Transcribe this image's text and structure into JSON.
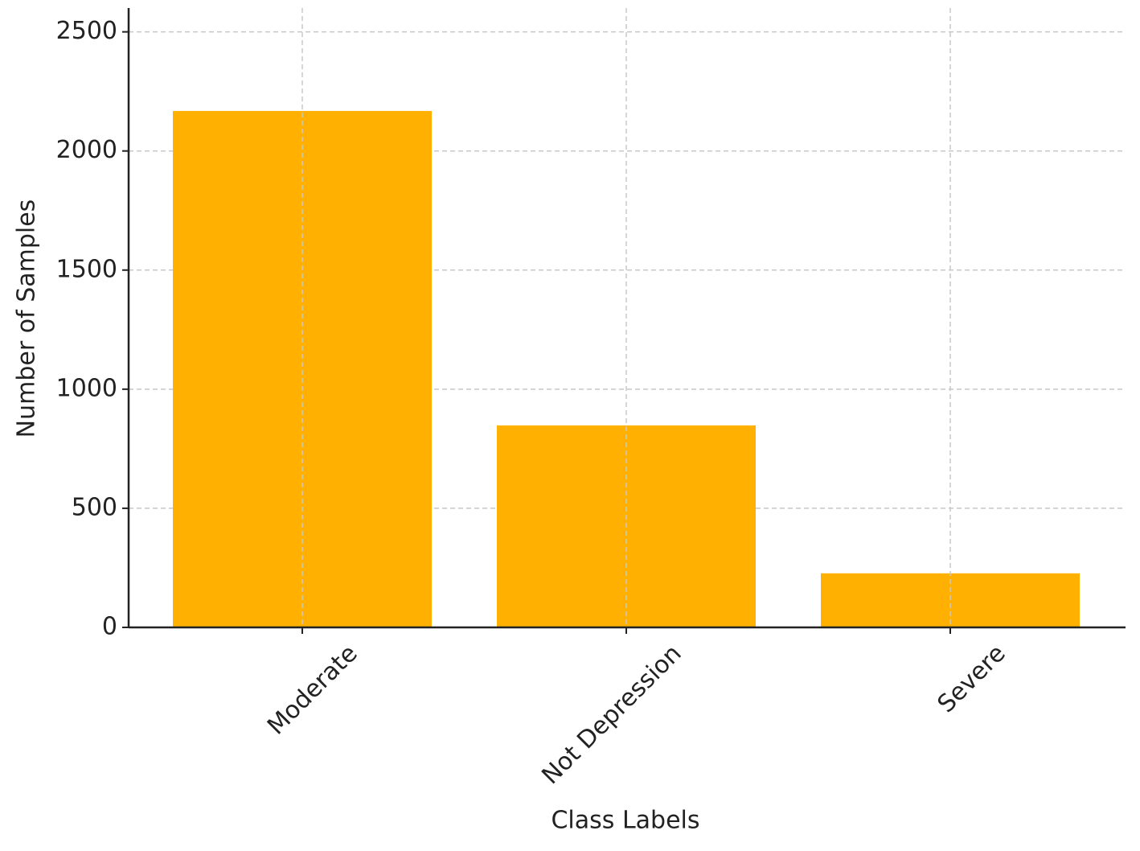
{
  "chart_data": {
    "type": "bar",
    "x_label": "Class Labels",
    "y_label": "Number of Samples",
    "categories": [
      "Moderate",
      "Not Depression",
      "Severe"
    ],
    "values": [
      2168,
      848,
      227
    ],
    "color": "#ffb000",
    "ylim": [
      0,
      2600
    ],
    "yticks": [
      0,
      500,
      1000,
      1500,
      2000,
      2500
    ],
    "grid": true
  }
}
